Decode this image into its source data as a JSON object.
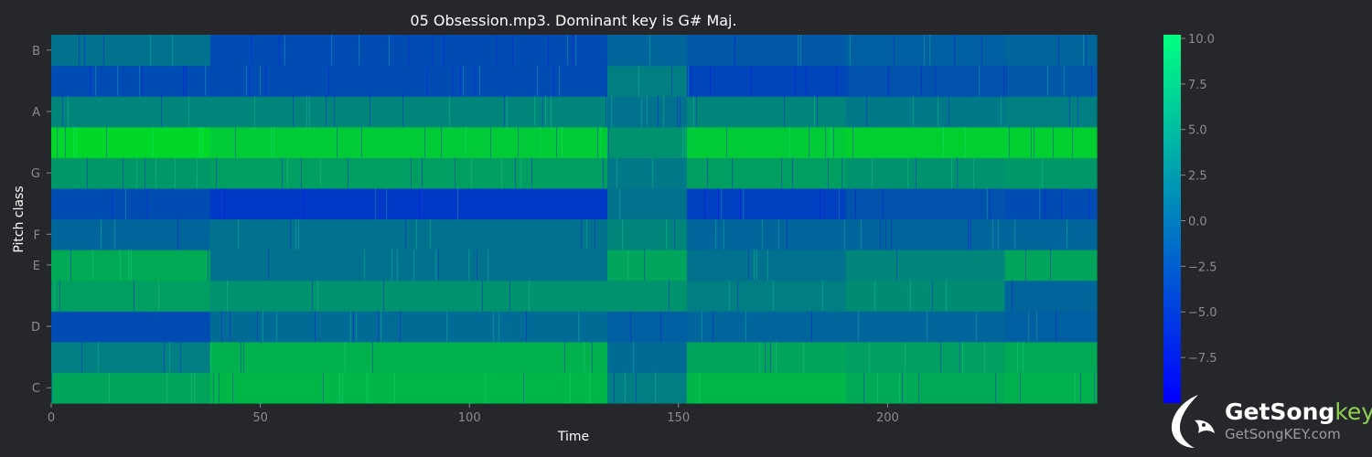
{
  "chart_data": {
    "type": "heatmap",
    "title": "05 Obsession.mp3. Dominant key is G# Maj.",
    "xlabel": "Time",
    "ylabel": "Pitch class",
    "pitch_classes": [
      "C",
      "C#",
      "D",
      "D#",
      "E",
      "F",
      "F#",
      "G",
      "G#",
      "A",
      "A#",
      "B"
    ],
    "y_tick_labels": [
      "C",
      "D",
      "E",
      "F",
      "G",
      "A",
      "B"
    ],
    "x_ticks": [
      0,
      50,
      100,
      150,
      200
    ],
    "xlim": [
      0,
      250
    ],
    "colorbar": {
      "range": [
        -10,
        10.2
      ],
      "ticks": [
        "10.0",
        "7.5",
        "5.0",
        "2.5",
        "0.0",
        "−2.5",
        "−5.0",
        "−7.5"
      ],
      "tick_values": [
        10,
        7.5,
        5,
        2.5,
        0,
        -2.5,
        -5,
        -7.5
      ],
      "colors": [
        "#0000ff",
        "#00ff80"
      ]
    },
    "segments_time": [
      0,
      38,
      133,
      152,
      190,
      228,
      250
    ],
    "segment_values": {
      "C": [
        3.0,
        4.5,
        0.0,
        4.5,
        3.5,
        4.0
      ],
      "C#": [
        0.0,
        4.0,
        -1.5,
        3.0,
        2.5,
        3.5
      ],
      "D": [
        -4.0,
        -1.5,
        -2.5,
        -2.0,
        -2.0,
        -2.5
      ],
      "D#": [
        2.5,
        1.5,
        1.5,
        0.0,
        1.0,
        -2.0
      ],
      "E": [
        3.5,
        -1.0,
        3.0,
        -1.0,
        0.5,
        3.0
      ],
      "F": [
        -2.0,
        -1.0,
        0.5,
        -2.0,
        -2.0,
        -2.0
      ],
      "F#": [
        -4.0,
        -5.5,
        -1.0,
        -5.0,
        -3.5,
        -4.0
      ],
      "G": [
        2.0,
        2.5,
        -0.5,
        2.5,
        1.5,
        2.0
      ],
      "G#": [
        7.0,
        6.0,
        1.5,
        6.0,
        6.5,
        6.5
      ],
      "A": [
        0.5,
        0.5,
        -1.0,
        0.5,
        -0.5,
        0.0
      ],
      "A#": [
        -4.0,
        -4.0,
        0.0,
        -4.5,
        -3.5,
        -3.0
      ],
      "B": [
        -1.0,
        -4.0,
        -2.0,
        -3.0,
        -2.5,
        -2.0
      ]
    }
  },
  "watermark": {
    "name_main": "GetSong",
    "name_accent": "key",
    "url": "GetSongKEY.com"
  }
}
